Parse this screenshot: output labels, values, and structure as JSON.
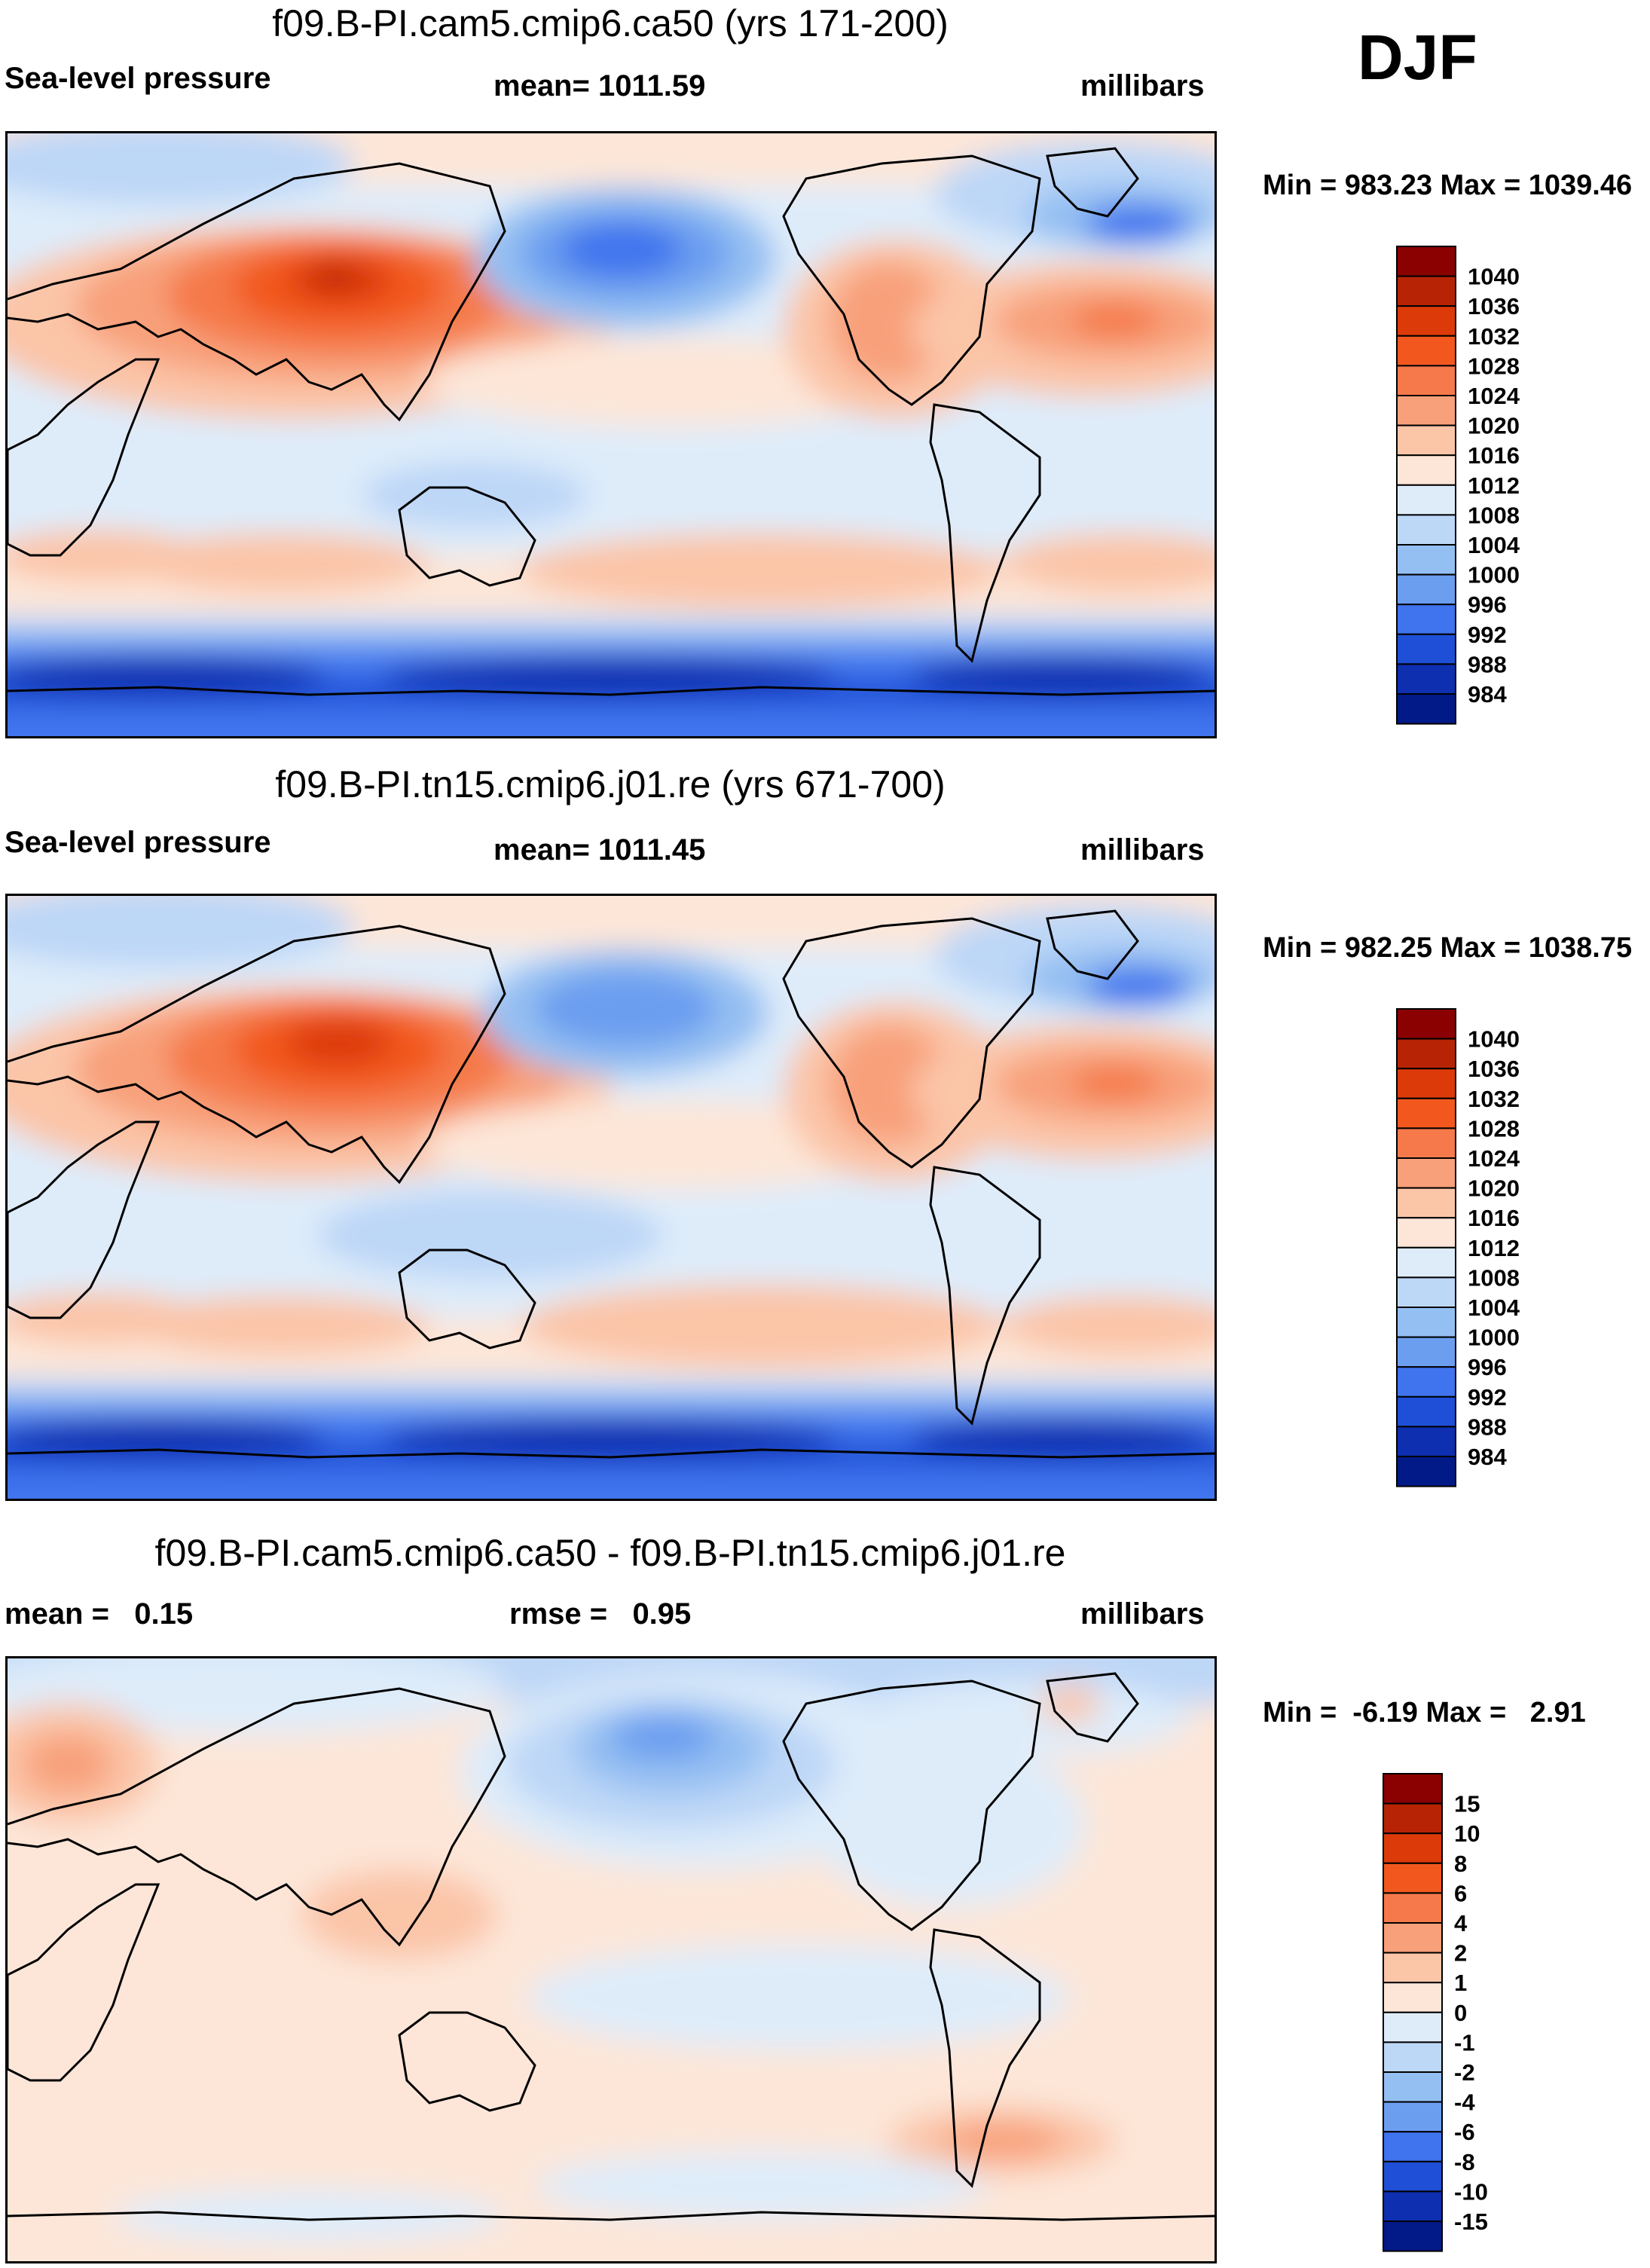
{
  "season": "DJF",
  "panels": [
    {
      "title": "f09.B-PI.cam5.cmip6.ca50 (yrs 171-200)",
      "left_label": "Sea-level pressure",
      "center_label": "mean= 1011.59",
      "right_label": "millibars",
      "minmax": "Min = 983.23 Max = 1039.46",
      "scale": {
        "labels": [
          "1040",
          "1036",
          "1032",
          "1028",
          "1024",
          "1020",
          "1016",
          "1012",
          "1008",
          "1004",
          "1000",
          "996",
          "992",
          "988",
          "984"
        ],
        "colors": [
          "#8b0000",
          "#b72305",
          "#dd3a0a",
          "#f2581e",
          "#f5794a",
          "#f8a07a",
          "#fbc5a8",
          "#fde6d8",
          "#deecfa",
          "#bdd7f7",
          "#94bff2",
          "#6c9ef0",
          "#3f74ee",
          "#1e4fd6",
          "#0d2fb0",
          "#021a88"
        ]
      },
      "field_regions": [
        "Siberian high",
        "Aleutian low",
        "North Atlantic subtropical high",
        "Icelandic low",
        "Southern Ocean low-pressure belt",
        "Southern Hemisphere subtropical highs"
      ]
    },
    {
      "title": "f09.B-PI.tn15.cmip6.j01.re (yrs 671-700)",
      "left_label": "Sea-level pressure",
      "center_label": "mean= 1011.45",
      "right_label": "millibars",
      "minmax": "Min = 982.25 Max = 1038.75",
      "scale": {
        "labels": [
          "1040",
          "1036",
          "1032",
          "1028",
          "1024",
          "1020",
          "1016",
          "1012",
          "1008",
          "1004",
          "1000",
          "996",
          "992",
          "988",
          "984"
        ],
        "colors": [
          "#8b0000",
          "#b72305",
          "#dd3a0a",
          "#f2581e",
          "#f5794a",
          "#f8a07a",
          "#fbc5a8",
          "#fde6d8",
          "#deecfa",
          "#bdd7f7",
          "#94bff2",
          "#6c9ef0",
          "#3f74ee",
          "#1e4fd6",
          "#0d2fb0",
          "#021a88"
        ]
      },
      "field_regions": [
        "Siberian high",
        "Aleutian low",
        "North Atlantic subtropical high",
        "Icelandic low",
        "Southern Ocean low-pressure belt",
        "Southern Hemisphere subtropical highs"
      ]
    },
    {
      "title": "f09.B-PI.cam5.cmip6.ca50 - f09.B-PI.tn15.cmip6.j01.re",
      "left_label": "mean =   0.15",
      "center_label": "rmse =   0.95",
      "right_label": "millibars",
      "minmax": "Min =  -6.19 Max =   2.91",
      "scale": {
        "labels": [
          "15",
          "10",
          "8",
          "6",
          "4",
          "2",
          "1",
          "0",
          "-1",
          "-2",
          "-4",
          "-6",
          "-8",
          "-10",
          "-15"
        ],
        "colors": [
          "#8b0000",
          "#b72305",
          "#dd3a0a",
          "#f2581e",
          "#f5794a",
          "#f8a07a",
          "#fbc5a8",
          "#fde6d8",
          "#deecfa",
          "#bdd7f7",
          "#94bff2",
          "#6c9ef0",
          "#3f74ee",
          "#1e4fd6",
          "#0d2fb0",
          "#021a88"
        ]
      },
      "field_regions": [
        "North Pacific negative anomaly",
        "Europe positive anomaly",
        "South Atlantic positive anomaly"
      ]
    }
  ]
}
